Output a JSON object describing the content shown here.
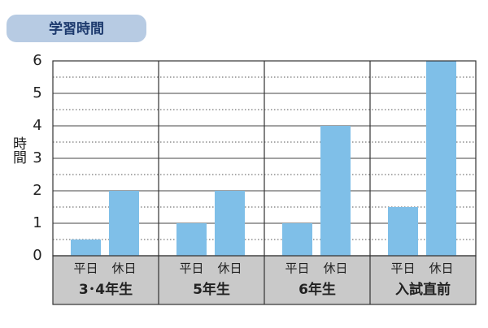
{
  "chart_data": {
    "type": "bar",
    "title": "学習時間",
    "y_label": "時間",
    "categories": [
      "3･4年生",
      "5年生",
      "6年生",
      "入試直前"
    ],
    "series": [
      {
        "name": "平日",
        "color": "#7fbfe8",
        "values": [
          0.5,
          1,
          1,
          1.5
        ]
      },
      {
        "name": "休日",
        "color": "#7fbfe8",
        "values": [
          2,
          2,
          4,
          6
        ]
      }
    ],
    "ylim": [
      0,
      6
    ],
    "yticks": [
      0,
      1,
      2,
      3,
      4,
      5,
      6
    ],
    "minor_yticks": [
      0.5,
      1.5,
      2.5,
      3.5,
      4.5,
      5.5
    ],
    "grid": true
  }
}
